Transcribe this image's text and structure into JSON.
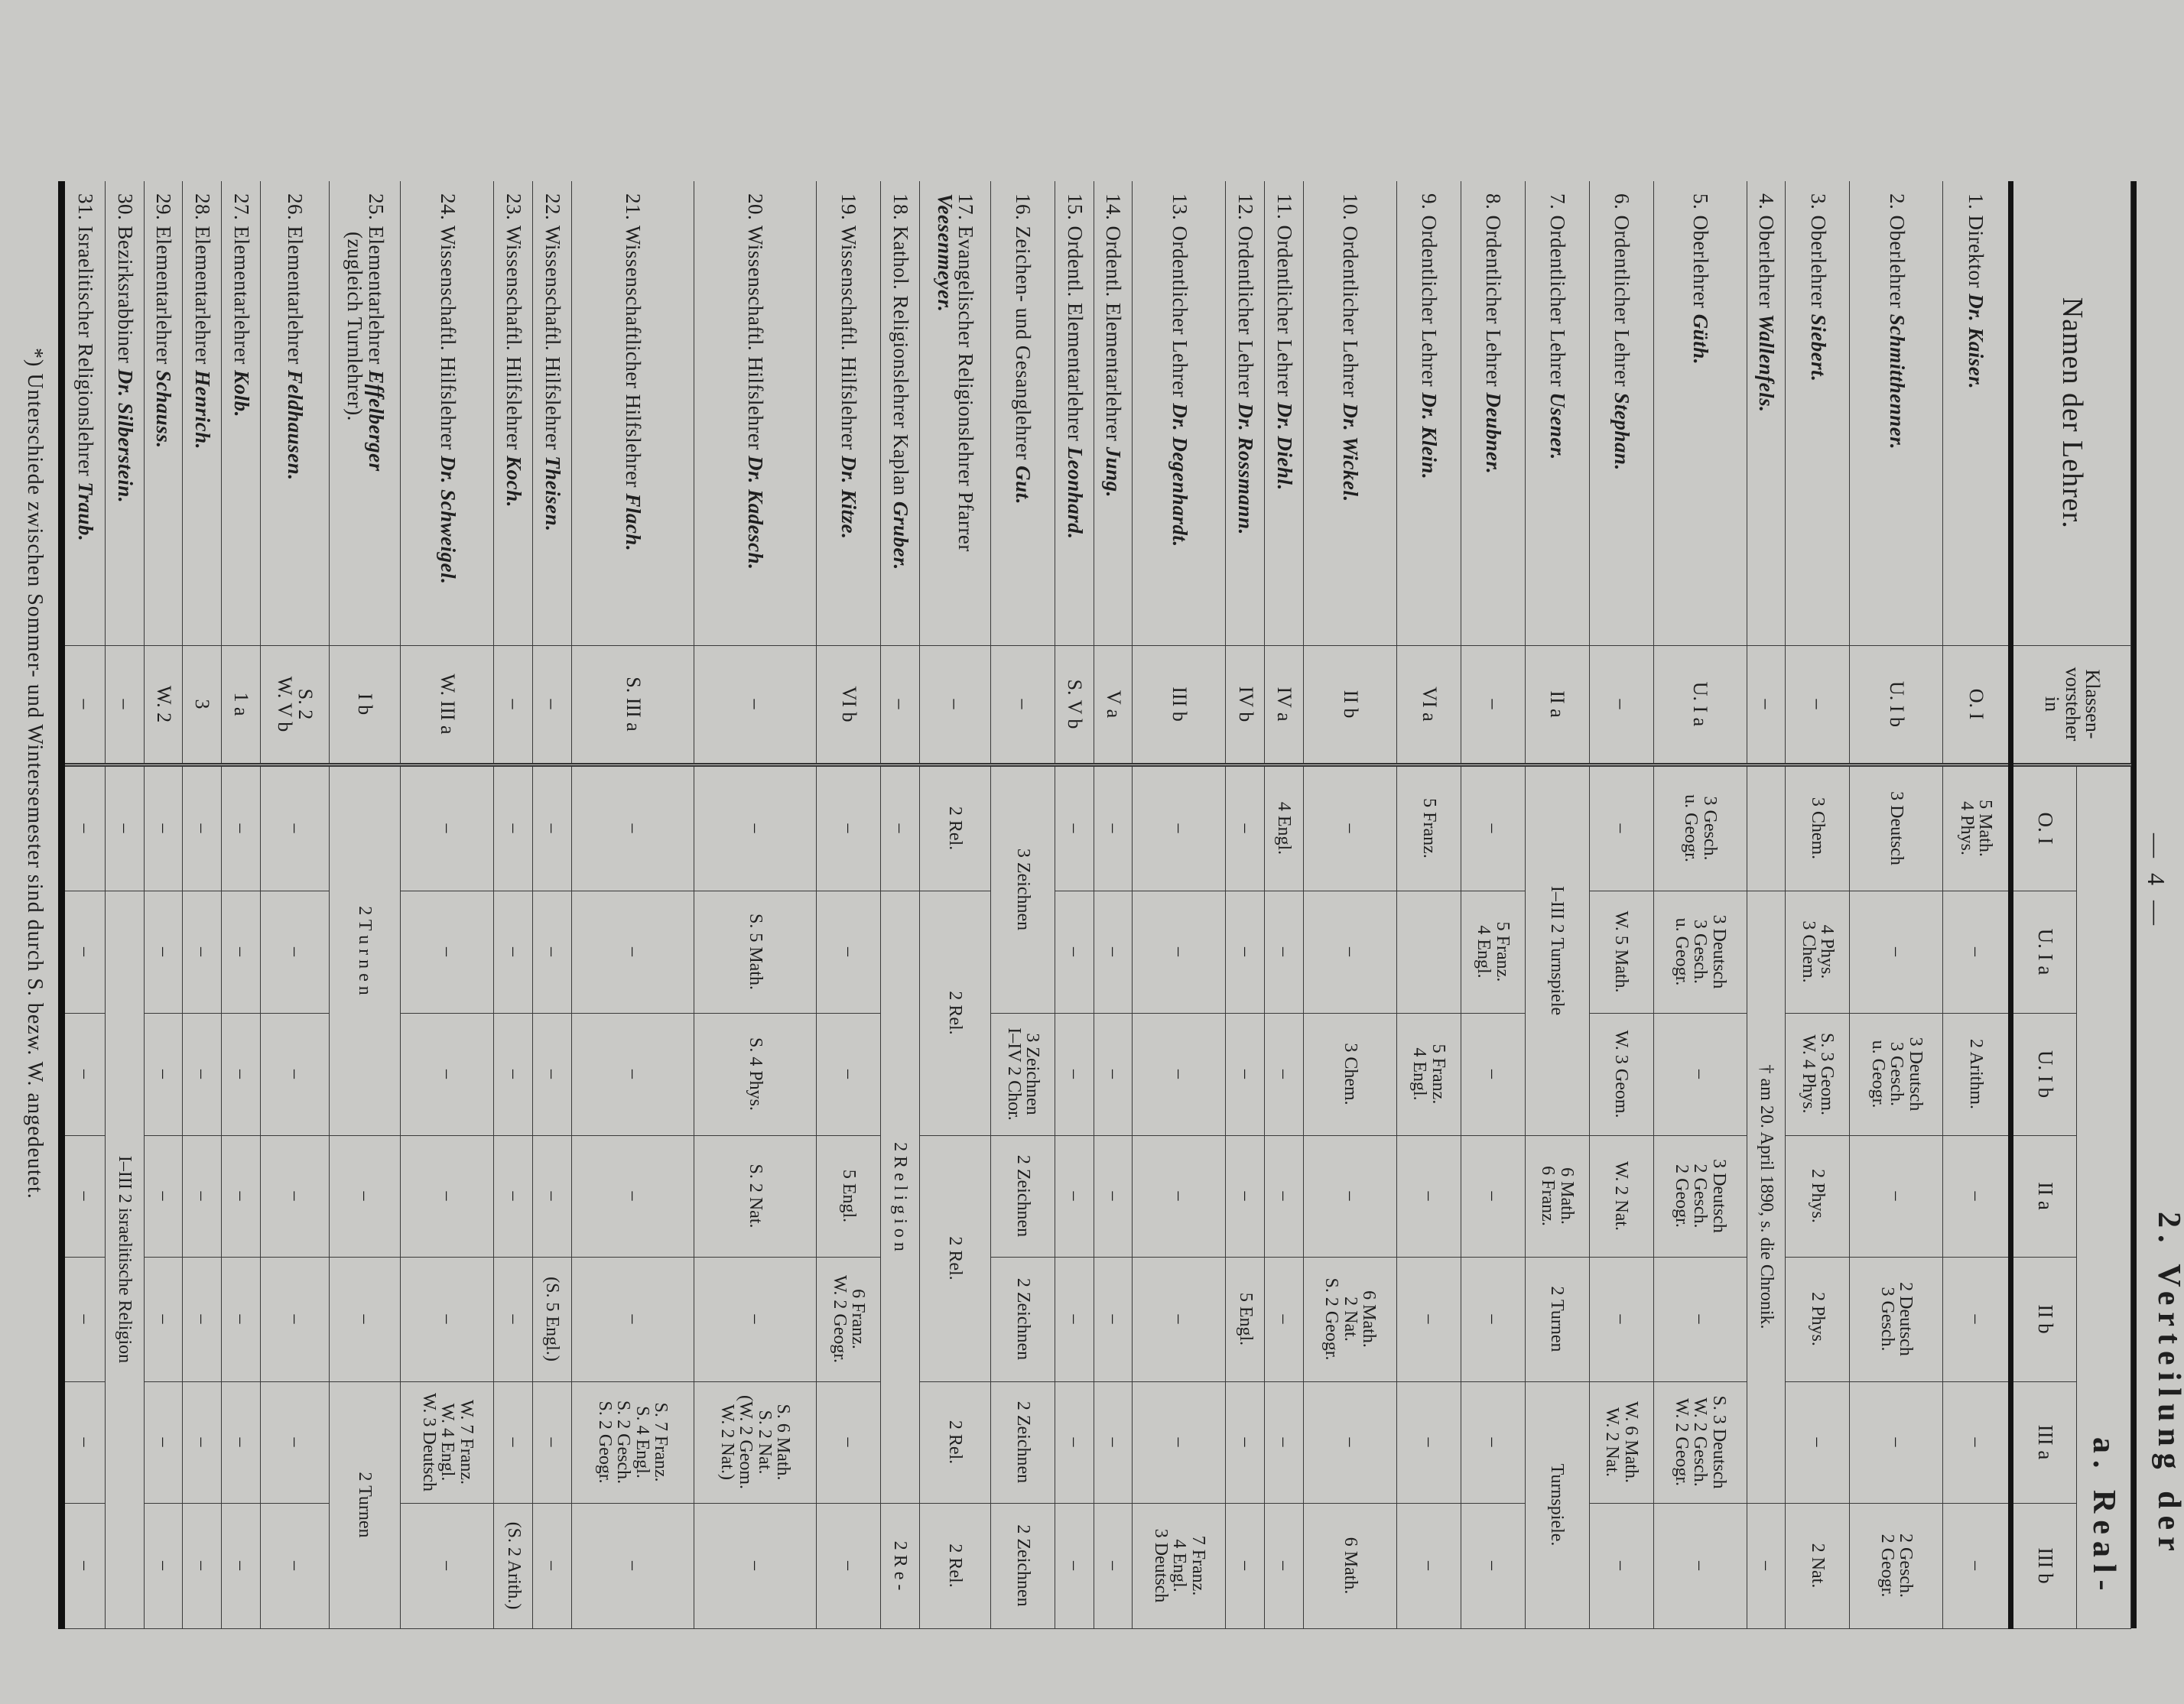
{
  "page": {
    "number": "— 4 —",
    "heading": "2. Verteilung der",
    "subheading": "a. Real-"
  },
  "table": {
    "headers": {
      "name": "Namen der Lehrer.",
      "vorsteher": "Klassen-\nvorsteher\nin",
      "classes": [
        "O. I",
        "U. I a",
        "U. I b",
        "II a",
        "II b",
        "III a",
        "III b"
      ]
    },
    "rows": [
      {
        "num": "1.",
        "title": "Direktor",
        "name": "Dr. Kaiser.",
        "vorsteher": "O. I",
        "cells": [
          "5 Math.\n4 Phys.",
          "–",
          "2 Arithm.",
          "–",
          "–",
          "–",
          "–"
        ]
      },
      {
        "num": "2.",
        "title": "Oberlehrer",
        "name": "Schmitthenner.",
        "vorsteher": "U. I b",
        "cells": [
          "3 Deutsch",
          "–",
          "3 Deutsch\n3 Gesch.\nu. Geogr.",
          "–",
          "2 Deutsch\n3 Gesch.",
          "–",
          "2 Gesch.\n2 Geogr."
        ]
      },
      {
        "num": "3.",
        "title": "Oberlehrer",
        "name": "Siebert.",
        "vorsteher": "–",
        "cells": [
          "3 Chem.",
          "4 Phys.\n3 Chem.",
          "S. 3 Geom.\nW. 4 Phys.",
          "2 Phys.",
          "2 Phys.",
          "–",
          "2 Nat."
        ]
      },
      {
        "num": "4.",
        "title": "Oberlehrer",
        "name": "Wallenfels.",
        "vorsteher": "–",
        "cells": [
          "",
          {
            "t": "† am 20. April 1890, s. die Chronik.",
            "span": 5
          },
          "–"
        ]
      },
      {
        "num": "5.",
        "title": "Oberlehrer",
        "name": "Güth.",
        "vorsteher": "U. I a",
        "cells": [
          "3 Gesch.\nu. Geogr.",
          "3 Deutsch\n3 Gesch.\nu. Geogr.",
          "–",
          "3 Deutsch\n2 Gesch.\n2 Geogr.",
          "–",
          "S. 3 Deutsch\nW. 2 Gesch.\nW. 2 Geogr.",
          "–"
        ]
      },
      {
        "num": "6.",
        "title": "Ordentlicher Lehrer",
        "name": "Stephan.",
        "vorsteher": "–",
        "cells": [
          "–",
          "W. 5 Math.",
          "W. 3 Geom.",
          "W. 2 Nat.",
          "–",
          "W. 6 Math.\nW. 2 Nat.",
          "–"
        ]
      },
      {
        "num": "7.",
        "title": "Ordentlicher Lehrer",
        "name": "Usener.",
        "vorsteher": "II a",
        "cells": [
          {
            "t": "I–III 2 Turnspiele",
            "span": 3
          },
          "6 Math.\n6 Franz.",
          "2 Turnen",
          {
            "t": "Turnspiele.",
            "span": 2
          }
        ]
      },
      {
        "num": "8.",
        "title": "Ordentlicher Lehrer",
        "name": "Deubner.",
        "vorsteher": "–",
        "cells": [
          "–",
          "5 Franz.\n4 Engl.",
          "–",
          "–",
          "–",
          "–",
          "–"
        ]
      },
      {
        "num": "9.",
        "title": "Ordentlicher Lehrer",
        "name": "Dr. Klein.",
        "vorsteher": "VI a",
        "cells": [
          "5 Franz.",
          "",
          "5 Franz.\n4 Engl.",
          "–",
          "–",
          "–",
          "–"
        ]
      },
      {
        "num": "10.",
        "title": "Ordentlicher Lehrer",
        "name": "Dr. Wickel.",
        "vorsteher": "II b",
        "cells": [
          "–",
          "–",
          "3 Chem.",
          "–",
          "6 Math.\n2 Nat.\nS. 2 Geogr.",
          "–",
          "6 Math."
        ]
      },
      {
        "num": "11.",
        "title": "Ordentlicher Lehrer",
        "name": "Dr. Diehl.",
        "vorsteher": "IV a",
        "cells": [
          "4 Engl.",
          "–",
          "–",
          "–",
          "–",
          "–",
          "–"
        ]
      },
      {
        "num": "12.",
        "title": "Ordentlicher Lehrer",
        "name": "Dr. Rossmann.",
        "vorsteher": "IV b",
        "cells": [
          "–",
          "–",
          "–",
          "–",
          "5 Engl.",
          "–",
          "–"
        ]
      },
      {
        "num": "13.",
        "title": "Ordentlicher Lehrer",
        "name": "Dr. Degenhardt.",
        "vorsteher": "III b",
        "cells": [
          "–",
          "–",
          "–",
          "–",
          "–",
          "–",
          "7 Franz.\n4 Engl.\n3 Deutsch"
        ]
      },
      {
        "num": "14.",
        "title": "Ordentl. Elementarlehrer",
        "name": "Jung.",
        "vorsteher": "V a",
        "cells": [
          "–",
          "–",
          "–",
          "–",
          "–",
          "–",
          "–"
        ]
      },
      {
        "num": "15.",
        "title": "Ordentl. Elementarlehrer",
        "name": "Leonhard.",
        "vorsteher": "S. V b",
        "cells": [
          "–",
          "–",
          "–",
          "–",
          "–",
          "–",
          "–"
        ]
      },
      {
        "num": "16.",
        "title": "Zeichen- und Gesanglehrer",
        "name": "Gut.",
        "vorsteher": "–",
        "cells": [
          {
            "t": "3 Zeichnen",
            "span": 2
          },
          "3 Zeichnen\nI–IV 2 Chor.",
          "2 Zeichnen",
          "2 Zeichnen",
          "2 Zeichnen",
          "2 Zeichnen"
        ]
      },
      {
        "num": "17.",
        "title": "Evangelischer Religionslehrer Pfarrer",
        "name": "Veesenmeyer.",
        "vorsteher": "–",
        "cells": [
          "2 Rel.",
          {
            "t": "2 Rel.",
            "span": 2
          },
          {
            "t": "2 Rel.",
            "span": 2
          },
          "2 Rel.",
          "2 Rel."
        ]
      },
      {
        "num": "18.",
        "title": "Kathol. Religionslehrer Kaplan",
        "name": "Gruber.",
        "vorsteher": "–",
        "cells": [
          "–",
          {
            "t": "2 R e l i g i o n",
            "span": 5
          },
          "2 R e -"
        ]
      },
      {
        "num": "19.",
        "title": "Wissenschaftl. Hilfslehrer",
        "name": "Dr. Kitze.",
        "vorsteher": "VI b",
        "cells": [
          "–",
          "–",
          "–",
          "5 Engl.",
          "6 Franz.\nW. 2 Geogr.",
          "–",
          "–"
        ]
      },
      {
        "num": "20.",
        "title": "Wissenschaftl. Hilfslehrer",
        "name": "Dr. Kadesch.",
        "vorsteher": "–",
        "cells": [
          "–",
          "S. 5 Math.",
          "S. 4 Phys.",
          "S. 2 Nat.",
          "–",
          "S. 6 Math.\nS. 2 Nat.\n(W. 2 Geom.\nW. 2 Nat.)",
          "–"
        ]
      },
      {
        "num": "21.",
        "title": "Wissenschaftlicher Hilfslehrer",
        "name": "Flach.",
        "vorsteher": "S. III a",
        "cells": [
          "–",
          "–",
          "–",
          "–",
          "–",
          "S. 7 Franz.\nS. 4 Engl.\nS. 2 Gesch.\nS. 2 Geogr.",
          "–"
        ]
      },
      {
        "num": "22.",
        "title": "Wissenschaftl. Hilfslehrer",
        "name": "Theisen.",
        "vorsteher": "–",
        "cells": [
          "–",
          "–",
          "–",
          "–",
          "(S. 5 Engl.)",
          "–",
          "–"
        ]
      },
      {
        "num": "23.",
        "title": "Wissenschaftl. Hilfslehrer",
        "name": "Koch.",
        "vorsteher": "–",
        "cells": [
          "–",
          "–",
          "–",
          "–",
          "–",
          "–",
          "(S. 2 Arith.)"
        ]
      },
      {
        "num": "24.",
        "title": "Wissenschaftl. Hilfslehrer",
        "name": "Dr. Schweigel.",
        "vorsteher": "W. III a",
        "cells": [
          "–",
          "–",
          "–",
          "–",
          "–",
          "W. 7 Franz.\nW. 4 Engl.\nW. 3 Deutsch",
          "–"
        ]
      },
      {
        "num": "25.",
        "title": "Elementarlehrer",
        "name": "Effelberger",
        "suffix": "(zugleich Turnlehrer).",
        "vorsteher": "I b",
        "cells": [
          {
            "t": "2 T u r n e n",
            "span": 3
          },
          "–",
          "–",
          {
            "t": "2 Turnen",
            "span": 2
          }
        ]
      },
      {
        "num": "26.",
        "title": "Elementarlehrer",
        "name": "Feldhausen.",
        "vorsteher": "S. 2\nW. V b",
        "cells": [
          "–",
          "–",
          "–",
          "–",
          "–",
          "–",
          "–"
        ]
      },
      {
        "num": "27.",
        "title": "Elementarlehrer",
        "name": "Kolb.",
        "vorsteher": "1 a",
        "cells": [
          "–",
          "–",
          "–",
          "–",
          "–",
          "–",
          "–"
        ]
      },
      {
        "num": "28.",
        "title": "Elementarlehrer",
        "name": "Henrich.",
        "vorsteher": "3",
        "cells": [
          "–",
          "–",
          "–",
          "–",
          "–",
          "–",
          "–"
        ]
      },
      {
        "num": "29.",
        "title": "Elementarlehrer",
        "name": "Schauss.",
        "vorsteher": "W. 2",
        "cells": [
          "–",
          "–",
          "–",
          "–",
          "–",
          "–",
          "–"
        ]
      },
      {
        "num": "30.",
        "title": "Bezirksrabbiner",
        "name": "Dr. Silberstein.",
        "vorsteher": "–",
        "cells": [
          "–",
          {
            "t": "I–III 2 israelitische Religion",
            "span": 6
          }
        ]
      },
      {
        "num": "31.",
        "title": "Israelitischer Religionslehrer",
        "name": "Traub.",
        "vorsteher": "–",
        "cells": [
          "–",
          "–",
          "–",
          "–",
          "–",
          "–",
          "–"
        ]
      }
    ]
  },
  "footnote": "*) Unterschiede zwischen Sommer- und Wintersemester sind durch S. bezw. W. angedeutet."
}
